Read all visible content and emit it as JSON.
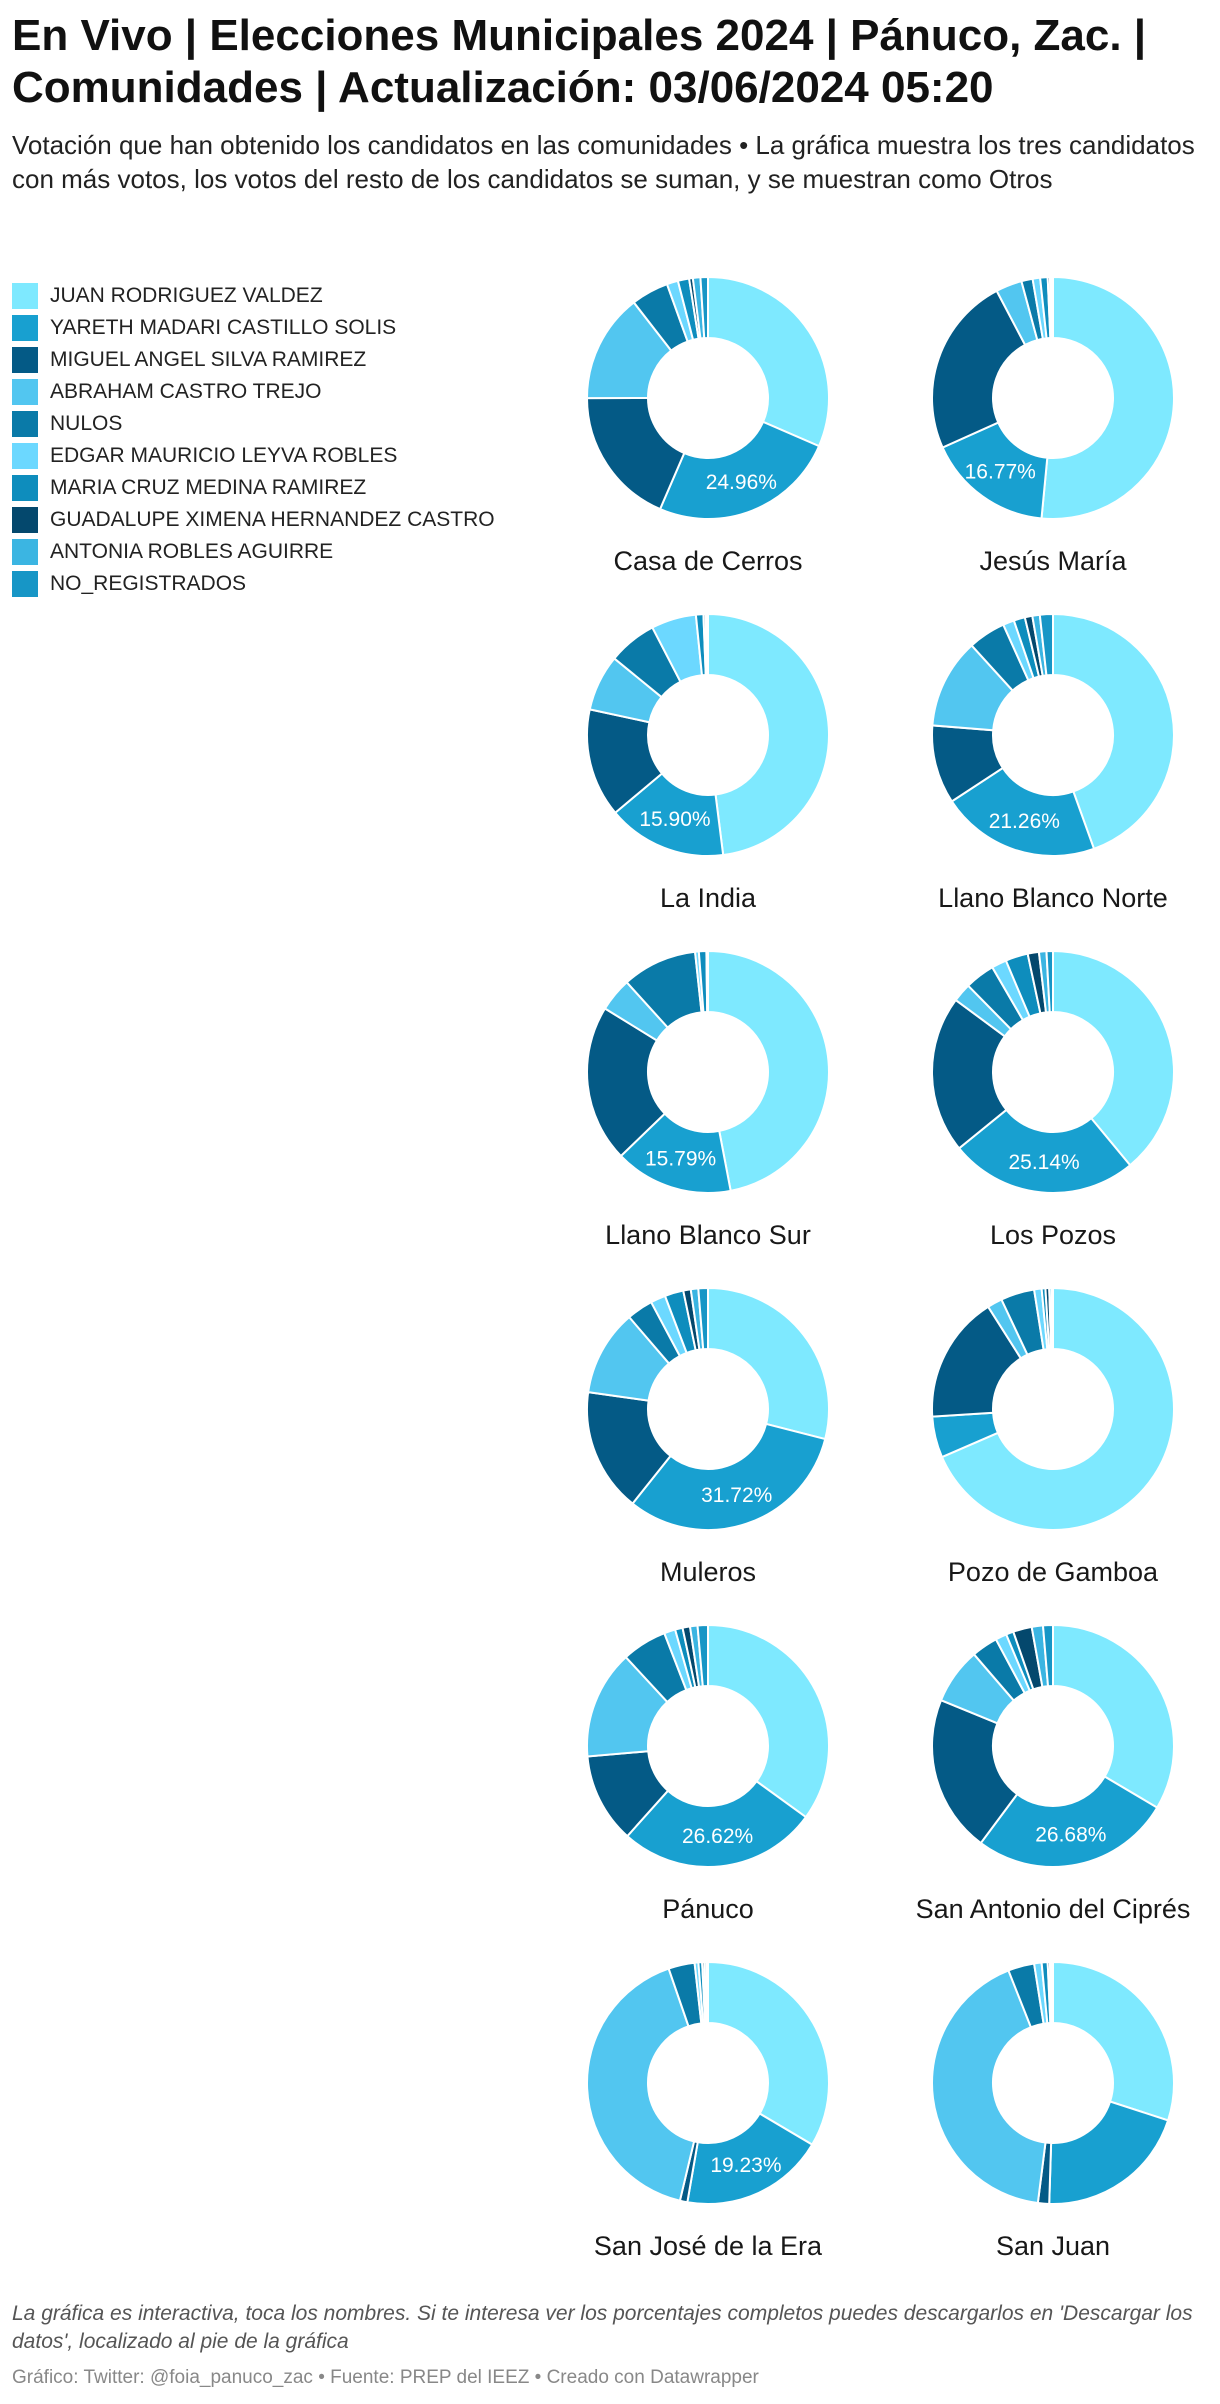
{
  "header": {
    "title": "En Vivo | Elecciones Municipales 2024 | Pánuco, Zac. | Comunidades | Actualización: 03/06/2024 05:20",
    "subtitle": "Votación que han obtenido los candidatos en las comunidades • La gráfica muestra los tres candidatos con más votos, los votos del resto de los candidatos se suman, y se muestran como Otros"
  },
  "legend": [
    {
      "label": "JUAN RODRIGUEZ VALDEZ",
      "color": "#7ee9ff"
    },
    {
      "label": "YARETH MADARI CASTILLO SOLIS",
      "color": "#18a0d0"
    },
    {
      "label": "MIGUEL ANGEL SILVA RAMIREZ",
      "color": "#045a86"
    },
    {
      "label": "ABRAHAM CASTRO TREJO",
      "color": "#52c6f0"
    },
    {
      "label": "NULOS",
      "color": "#0a7aa8"
    },
    {
      "label": "EDGAR MAURICIO LEYVA ROBLES",
      "color": "#6cd8ff"
    },
    {
      "label": "MARIA CRUZ MEDINA RAMIREZ",
      "color": "#0e8dbd"
    },
    {
      "label": "GUADALUPE XIMENA HERNANDEZ CASTRO",
      "color": "#04486d"
    },
    {
      "label": "ANTONIA ROBLES AGUIRRE",
      "color": "#3bb5e2"
    },
    {
      "label": "NO_REGISTRADOS",
      "color": "#1796c6"
    }
  ],
  "chart_data": {
    "type": "pie",
    "series_names": [
      "JUAN RODRIGUEZ VALDEZ",
      "YARETH MADARI CASTILLO SOLIS",
      "MIGUEL ANGEL SILVA RAMIREZ",
      "ABRAHAM CASTRO TREJO",
      "NULOS",
      "EDGAR MAURICIO LEYVA ROBLES",
      "MARIA CRUZ MEDINA RAMIREZ",
      "GUADALUPE XIMENA HERNANDEZ CASTRO",
      "ANTONIA ROBLES AGUIRRE",
      "NO_REGISTRADOS"
    ],
    "charts": [
      {
        "name": "Casa de Cerros",
        "values": [
          31.5,
          24.96,
          18.5,
          14.5,
          5.0,
          1.5,
          1.5,
          0.5,
          1.0,
          1.0
        ],
        "label_index": 1,
        "label": "24.96%"
      },
      {
        "name": "Jesús María",
        "values": [
          51.5,
          16.77,
          24.0,
          3.5,
          1.5,
          1.0,
          1.0,
          0.3,
          0.2,
          0.2
        ],
        "label_index": 1,
        "label": "16.77%"
      },
      {
        "name": "La India",
        "values": [
          48.0,
          15.9,
          14.5,
          7.5,
          6.5,
          6.0,
          1.0,
          0.3,
          0.2,
          0.1
        ],
        "label_index": 1,
        "label": "15.90%"
      },
      {
        "name": "Llano Blanco Norte",
        "values": [
          44.5,
          21.26,
          10.5,
          12.0,
          5.0,
          1.5,
          1.5,
          1.0,
          1.0,
          1.74
        ],
        "label_index": 1,
        "label": "21.26%"
      },
      {
        "name": "Llano Blanco Sur",
        "values": [
          47.0,
          15.79,
          21.0,
          4.5,
          10.0,
          0.5,
          1.0,
          0.1,
          0.05,
          0.06
        ],
        "label_index": 1,
        "label": "15.79%"
      },
      {
        "name": "Los Pozos",
        "values": [
          39.0,
          25.14,
          21.0,
          2.5,
          4.0,
          2.0,
          3.0,
          1.5,
          1.0,
          0.86
        ],
        "label_index": 1,
        "label": "25.14%"
      },
      {
        "name": "Muleros",
        "values": [
          29.0,
          31.72,
          16.5,
          11.5,
          3.5,
          2.0,
          2.5,
          1.0,
          1.0,
          1.28
        ],
        "label_index": 1,
        "label": "31.72%"
      },
      {
        "name": "Pozo de Gamboa",
        "values": [
          68.5,
          5.5,
          17.0,
          2.0,
          4.5,
          1.0,
          0.5,
          0.5,
          0.3,
          0.2
        ],
        "label_index": null,
        "label": ""
      },
      {
        "name": "Pánuco",
        "values": [
          35.0,
          26.62,
          12.0,
          14.5,
          6.0,
          1.5,
          1.0,
          1.0,
          1.0,
          1.38
        ],
        "label_index": 1,
        "label": "26.62%"
      },
      {
        "name": "San Antonio del Ciprés",
        "values": [
          33.5,
          26.68,
          21.0,
          7.5,
          3.5,
          1.5,
          1.0,
          2.5,
          1.5,
          1.32
        ],
        "label_index": 1,
        "label": "26.68%"
      },
      {
        "name": "San José de la Era",
        "values": [
          33.5,
          19.23,
          1.0,
          41.0,
          3.5,
          0.5,
          0.5,
          0.3,
          0.3,
          0.17
        ],
        "label_index": 1,
        "label": "19.23%"
      },
      {
        "name": "San Juan",
        "values": [
          30.0,
          20.5,
          1.5,
          42.0,
          3.5,
          1.0,
          0.8,
          0.3,
          0.2,
          0.2
        ],
        "label_index": null,
        "label": ""
      }
    ]
  },
  "footer": {
    "note": "La gráfica es interactiva, toca los nombres. Si te interesa ver los porcentajes completos puedes descargarlos en 'Descargar los datos', localizado al pie de la gráfica",
    "credits": "Gráfico: Twitter: @foia_panuco_zac • Fuente: PREP del IEEZ • Creado con Datawrapper"
  }
}
